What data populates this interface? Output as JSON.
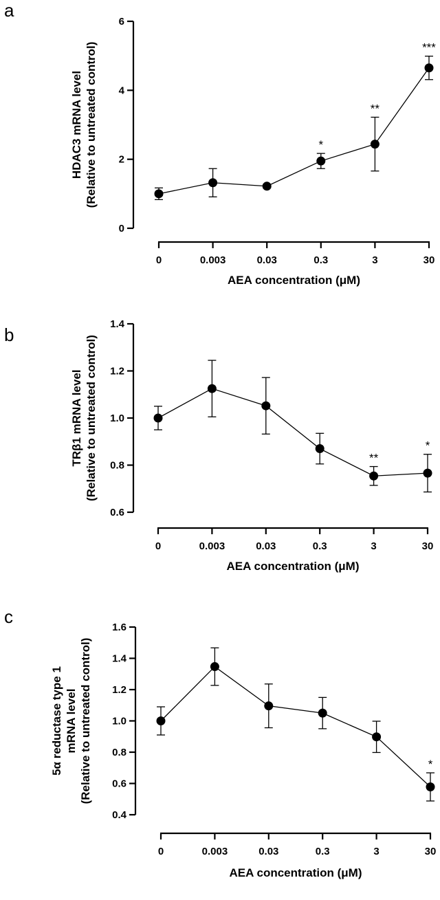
{
  "chart_data": [
    {
      "panel": "a",
      "type": "line",
      "categories": [
        "0",
        "0.003",
        "0.03",
        "0.3",
        "3",
        "30"
      ],
      "values": [
        1.0,
        1.32,
        1.22,
        1.95,
        2.44,
        4.65
      ],
      "errors": [
        0.17,
        0.41,
        0.05,
        0.22,
        0.78,
        0.34
      ],
      "significance": [
        "",
        "",
        "",
        "*",
        "**",
        "***"
      ],
      "xlabel": "AEA concentration (μM)",
      "ylabel": [
        "HDAC3 mRNA level",
        "(Relative to untreated control)"
      ],
      "ylim": [
        0,
        6
      ],
      "yticks": [
        "0",
        "2",
        "4",
        "6"
      ]
    },
    {
      "panel": "b",
      "type": "line",
      "categories": [
        "0",
        "0.003",
        "0.03",
        "0.3",
        "3",
        "30"
      ],
      "values": [
        1.0,
        1.125,
        1.052,
        0.87,
        0.754,
        0.766
      ],
      "errors": [
        0.05,
        0.12,
        0.12,
        0.065,
        0.04,
        0.08
      ],
      "significance": [
        "",
        "",
        "",
        "",
        "**",
        "*"
      ],
      "xlabel": "AEA concentration (μM)",
      "ylabel": [
        "TRβ1 mRNA level",
        "(Relative to untreated control)"
      ],
      "ylim": [
        0.6,
        1.4
      ],
      "yticks": [
        "0.6",
        "0.8",
        "1.0",
        "1.2",
        "1.4"
      ]
    },
    {
      "panel": "c",
      "type": "line",
      "categories": [
        "0",
        "0.003",
        "0.03",
        "0.3",
        "3",
        "30"
      ],
      "values": [
        1.0,
        1.347,
        1.096,
        1.05,
        0.898,
        0.578
      ],
      "errors": [
        0.09,
        0.12,
        0.14,
        0.1,
        0.1,
        0.09
      ],
      "significance": [
        "",
        "",
        "",
        "",
        "",
        "*"
      ],
      "xlabel": "AEA concentration (μM)",
      "ylabel": [
        "5α reductase type 1",
        "mRNA level",
        "(Relative to untreated control)"
      ],
      "ylim": [
        0.4,
        1.6
      ],
      "yticks": [
        "0.4",
        "0.6",
        "0.8",
        "1.0",
        "1.2",
        "1.4",
        "1.6"
      ]
    }
  ]
}
